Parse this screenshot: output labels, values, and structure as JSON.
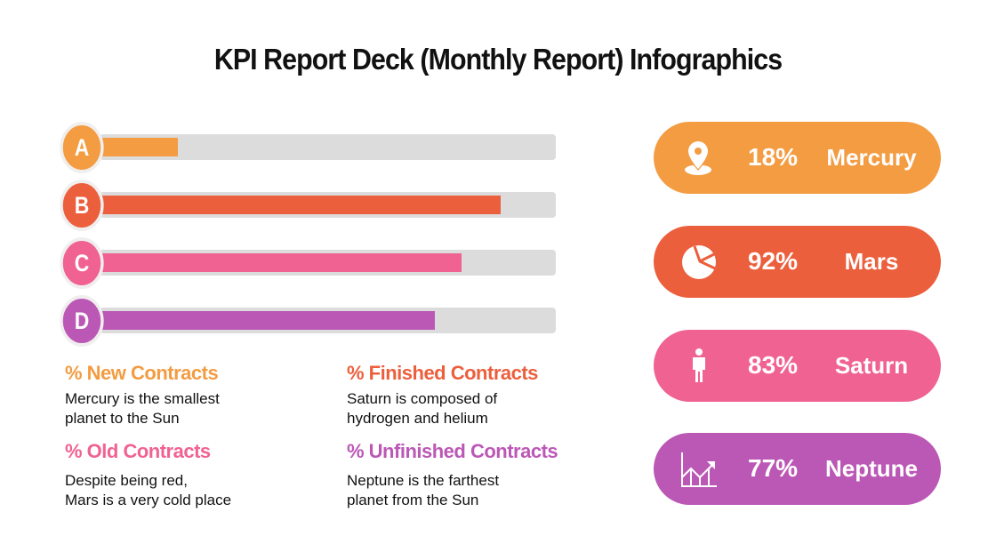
{
  "title": "KPI Report Deck (Monthly Report) Infographics",
  "chart_data": {
    "type": "bar",
    "categories": [
      "A",
      "B",
      "C",
      "D"
    ],
    "values": [
      18,
      92,
      83,
      77
    ],
    "colors": [
      "#f39c42",
      "#ec5f3d",
      "#f06292",
      "#bb58b6"
    ],
    "ylim": [
      0,
      100
    ]
  },
  "legend": [
    {
      "heading": "% New Contracts",
      "text1": "Mercury is the smallest",
      "text2": "planet to the Sun",
      "color": "#f39c42"
    },
    {
      "heading": "% Finished Contracts",
      "text1": "Saturn is composed of",
      "text2": "hydrogen and helium",
      "color": "#ec5f3d"
    },
    {
      "heading": "% Old Contracts",
      "text1": "Despite being red,",
      "text2": "Mars is a very cold place",
      "color": "#f06292"
    },
    {
      "heading": "% Unfinished Contracts",
      "text1": "Neptune is the farthest",
      "text2": "planet from the Sun",
      "color": "#bb58b6"
    }
  ],
  "pills": [
    {
      "pct": "18%",
      "name": "Mercury",
      "icon": "location-pin-icon",
      "color": "#f39c42"
    },
    {
      "pct": "92%",
      "name": "Mars",
      "icon": "pie-chart-icon",
      "color": "#ec5f3d"
    },
    {
      "pct": "83%",
      "name": "Saturn",
      "icon": "person-icon",
      "color": "#f06292"
    },
    {
      "pct": "77%",
      "name": "Neptune",
      "icon": "growth-chart-icon",
      "color": "#bb58b6"
    }
  ]
}
